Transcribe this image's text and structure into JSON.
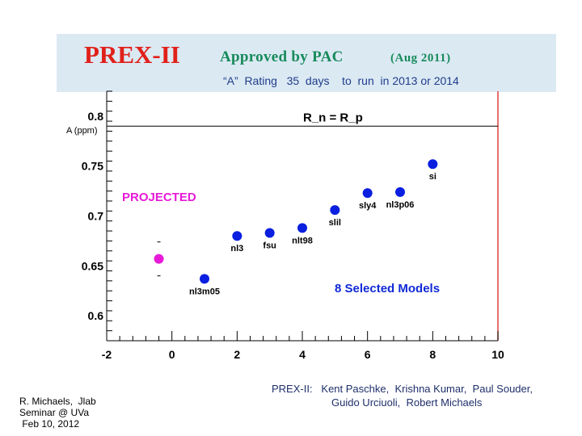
{
  "header": {
    "title": "PREX-II",
    "approved": "Approved  by  PAC",
    "date": "(Aug  2011)",
    "rating": "“A”  Rating   35  days    to  run  in 2013 or 2014"
  },
  "footer": {
    "credit_lines": [
      "R. Michaels,  Jlab",
      "Seminar @ UVa",
      " Feb 10, 2012"
    ],
    "collab_line1": "PREX-II:   Kent Paschke,  Krishna Kumar,  Paul Souder,",
    "collab_line2": "Guido Urciuoli,  Robert Michaels"
  },
  "colors": {
    "model_points": "#0a1fe0",
    "projected_point": "#e81ad8",
    "projected_label": "#e81ad8",
    "selected_label": "#1029d6",
    "frame_right": "#e04040",
    "title_red": "#e0211a",
    "approved_green": "#178a5a"
  },
  "chart_data": {
    "type": "scatter",
    "xlim": [
      -2,
      10
    ],
    "ylim": [
      0.575,
      0.825
    ],
    "x_ticks": [
      -2,
      0,
      2,
      4,
      6,
      8,
      10
    ],
    "y_ticks": [
      0.6,
      0.65,
      0.7,
      0.75,
      0.8
    ],
    "ylabel": "A (ppm)",
    "reference_line": {
      "y": 0.79,
      "label": "R_n = R_p"
    },
    "annotation_projected": "PROJECTED",
    "annotation_selected": "8 Selected Models",
    "grid": false,
    "series": [
      {
        "name": "models",
        "points": [
          {
            "x": 1,
            "y": 0.637,
            "label": "nl3m05"
          },
          {
            "x": 2,
            "y": 0.68,
            "label": "nl3"
          },
          {
            "x": 3,
            "y": 0.683,
            "label": "fsu"
          },
          {
            "x": 4,
            "y": 0.688,
            "label": "nlt98"
          },
          {
            "x": 5,
            "y": 0.706,
            "label": "slil"
          },
          {
            "x": 6,
            "y": 0.723,
            "label": "sly4"
          },
          {
            "x": 7,
            "y": 0.724,
            "label": "nl3p06"
          },
          {
            "x": 8,
            "y": 0.752,
            "label": "si"
          }
        ]
      },
      {
        "name": "projected",
        "points": [
          {
            "x": -0.4,
            "y": 0.657,
            "label": ""
          }
        ],
        "error_bar": [
          0.64,
          0.674
        ]
      }
    ]
  }
}
